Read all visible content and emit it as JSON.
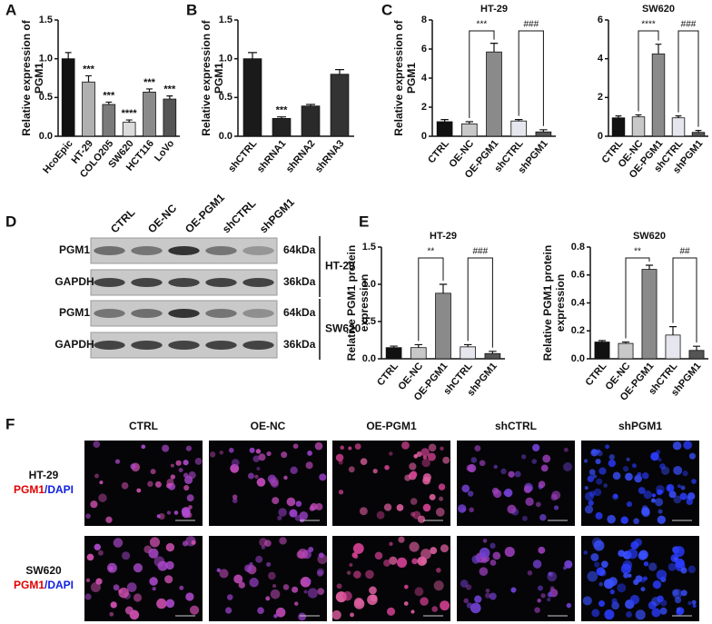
{
  "panel_labels": [
    "A",
    "B",
    "C",
    "D",
    "E",
    "F"
  ],
  "chart_data": [
    {
      "type": "bar",
      "ylabel": [
        "Relative expression of",
        "PGM1"
      ],
      "categories": [
        "HcoEpic",
        "HT-29",
        "COLO205",
        "SW620",
        "HCT116",
        "LoVo"
      ],
      "values": [
        1.0,
        0.7,
        0.41,
        0.18,
        0.57,
        0.48
      ],
      "errors": [
        0.08,
        0.08,
        0.03,
        0.03,
        0.04,
        0.04
      ],
      "colors": [
        "#111111",
        "#b0b0b0",
        "#7a7a7a",
        "#dcdcdc",
        "#8a8a8a",
        "#555555"
      ],
      "annotations": [
        null,
        "***",
        "***",
        "****",
        "***",
        "***"
      ],
      "ylim": [
        0,
        1.5
      ],
      "yticks": [
        {
          "value": 0,
          "label": "0.0"
        },
        0.5,
        {
          "value": 1,
          "label": "1.0"
        },
        1.5
      ]
    },
    {
      "type": "bar",
      "ylabel": [
        "Relative expression of",
        "PGM1"
      ],
      "categories": [
        "shCTRL",
        "shRNA1",
        "shRNA2",
        "shRNA3"
      ],
      "values": [
        1.0,
        0.23,
        0.39,
        0.8
      ],
      "errors": [
        0.08,
        0.02,
        0.02,
        0.06
      ],
      "colors": [
        "#1a1a1a",
        "#222222",
        "#2a2a2a",
        "#333333"
      ],
      "annotations": [
        null,
        "***",
        null,
        null
      ],
      "ylim": [
        0,
        1.5
      ],
      "yticks": [
        {
          "value": 0,
          "label": "0.0"
        },
        0.5,
        {
          "value": 1,
          "label": "1.0"
        },
        1.5
      ]
    },
    {
      "type": "bar",
      "title": "HT-29",
      "ylabel": [
        "Relative expression of",
        "PGM1"
      ],
      "categories": [
        "CTRL",
        "OE-NC",
        "OE-PGM1",
        "shCTRL",
        "shPGM1"
      ],
      "values": [
        1.0,
        0.85,
        5.8,
        1.05,
        0.3
      ],
      "errors": [
        0.15,
        0.15,
        0.6,
        0.1,
        0.15
      ],
      "colors": [
        "#111111",
        "#c8c8c8",
        "#8a8a8a",
        "#e6e6ee",
        "#555555"
      ],
      "comparisons": [
        {
          "pair": [
            "OE-NC",
            "OE-PGM1"
          ],
          "label": "***"
        },
        {
          "pair": [
            "shCTRL",
            "shPGM1"
          ],
          "label": "###"
        }
      ],
      "ylim": [
        0,
        8
      ],
      "yticks": [
        0,
        2,
        4,
        6,
        8
      ]
    },
    {
      "type": "bar",
      "title": "SW620",
      "categories": [
        "CTRL",
        "OE-NC",
        "OE-PGM1",
        "shCTRL",
        "shPGM1"
      ],
      "values": [
        0.95,
        1.0,
        4.25,
        0.95,
        0.2
      ],
      "errors": [
        0.1,
        0.1,
        0.5,
        0.1,
        0.1
      ],
      "colors": [
        "#111111",
        "#c8c8c8",
        "#8a8a8a",
        "#e6e6ee",
        "#555555"
      ],
      "comparisons": [
        {
          "pair": [
            "OE-NC",
            "OE-PGM1"
          ],
          "label": "****"
        },
        {
          "pair": [
            "shCTRL",
            "shPGM1"
          ],
          "label": "###"
        }
      ],
      "ylim": [
        0,
        6
      ],
      "yticks": [
        0,
        2,
        4,
        6
      ]
    },
    {
      "type": "bar",
      "title": "HT-29",
      "ylabel": [
        "Relative PGM1 protein",
        "expression"
      ],
      "categories": [
        "CTRL",
        "OE-NC",
        "OE-PGM1",
        "shCTRL",
        "shPGM1"
      ],
      "values": [
        0.15,
        0.15,
        0.88,
        0.16,
        0.07
      ],
      "errors": [
        0.02,
        0.04,
        0.12,
        0.03,
        0.03
      ],
      "colors": [
        "#111111",
        "#c8c8c8",
        "#8a8a8a",
        "#e6e6ee",
        "#555555"
      ],
      "comparisons": [
        {
          "pair": [
            "OE-NC",
            "OE-PGM1"
          ],
          "label": "**"
        },
        {
          "pair": [
            "shCTRL",
            "shPGM1"
          ],
          "label": "###"
        }
      ],
      "ylim": [
        0,
        1.5
      ],
      "yticks": [
        {
          "value": 0,
          "label": "0.0"
        },
        0.5,
        {
          "value": 1,
          "label": "1.0"
        },
        1.5
      ]
    },
    {
      "type": "bar",
      "title": "SW620",
      "ylabel": [
        "Relative PGM1 protein",
        "expression"
      ],
      "categories": [
        "CTRL",
        "OE-NC",
        "OE-PGM1",
        "shCTRL",
        "shPGM1"
      ],
      "values": [
        0.12,
        0.11,
        0.64,
        0.17,
        0.06
      ],
      "errors": [
        0.01,
        0.01,
        0.03,
        0.06,
        0.03
      ],
      "colors": [
        "#111111",
        "#c8c8c8",
        "#8a8a8a",
        "#e6e6ee",
        "#555555"
      ],
      "comparisons": [
        {
          "pair": [
            "OE-NC",
            "OE-PGM1"
          ],
          "label": "**"
        },
        {
          "pair": [
            "shCTRL",
            "shPGM1"
          ],
          "label": "##"
        }
      ],
      "ylim": [
        0,
        0.8
      ],
      "yticks": [
        {
          "value": 0,
          "label": "0.0"
        },
        0.2,
        0.4,
        0.6,
        0.8
      ]
    }
  ],
  "blot": {
    "lanes": [
      "CTRL",
      "OE-NC",
      "OE-PGM1",
      "shCTRL",
      "shPGM1"
    ],
    "rows": [
      {
        "protein": "PGM1",
        "size": "64kDa"
      },
      {
        "protein": "GAPDH",
        "size": "36kDa"
      },
      {
        "protein": "PGM1",
        "size": "64kDa"
      },
      {
        "protein": "GAPDH",
        "size": "36kDa"
      }
    ],
    "groups": [
      "HT-29",
      "SW620"
    ]
  },
  "micrographs": {
    "columns": [
      "CTRL",
      "OE-NC",
      "OE-PGM1",
      "shCTRL",
      "shPGM1"
    ],
    "rows": [
      {
        "cell": "HT-29",
        "marker": "PGM1",
        "counterstain": "/DAPI"
      },
      {
        "cell": "SW620",
        "marker": "PGM1",
        "counterstain": "/DAPI"
      }
    ]
  }
}
